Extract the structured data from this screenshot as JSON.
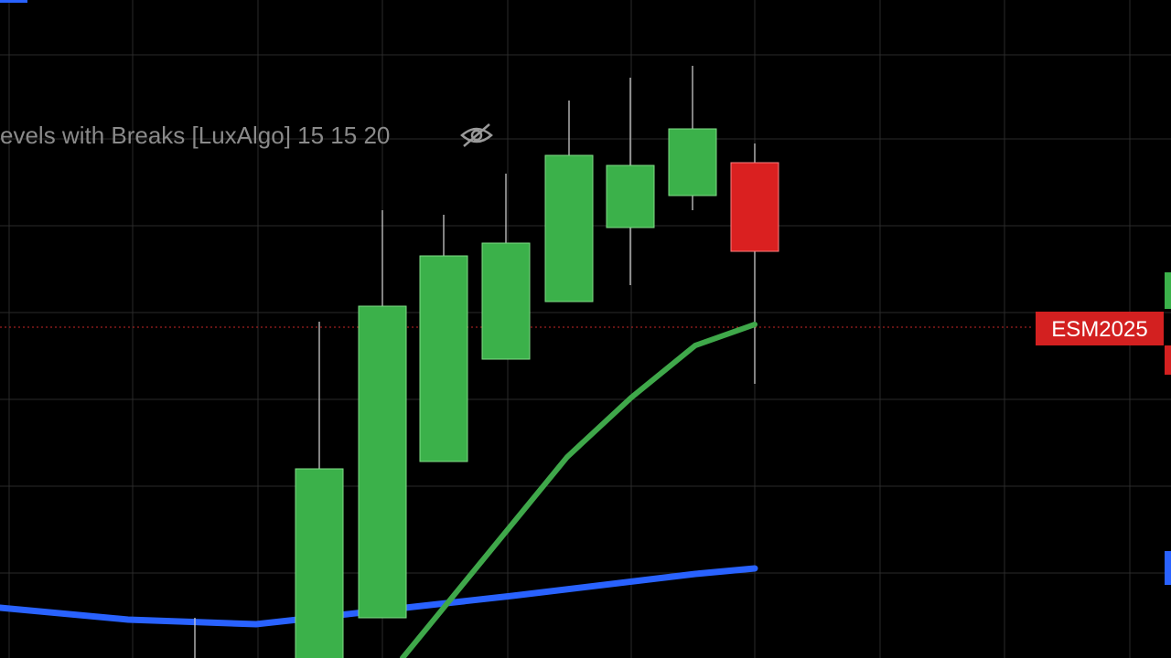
{
  "indicator": {
    "label": "evels with Breaks [LuxAlgo] 15 15 20"
  },
  "price_label": {
    "symbol": "ESM2025"
  }
}
